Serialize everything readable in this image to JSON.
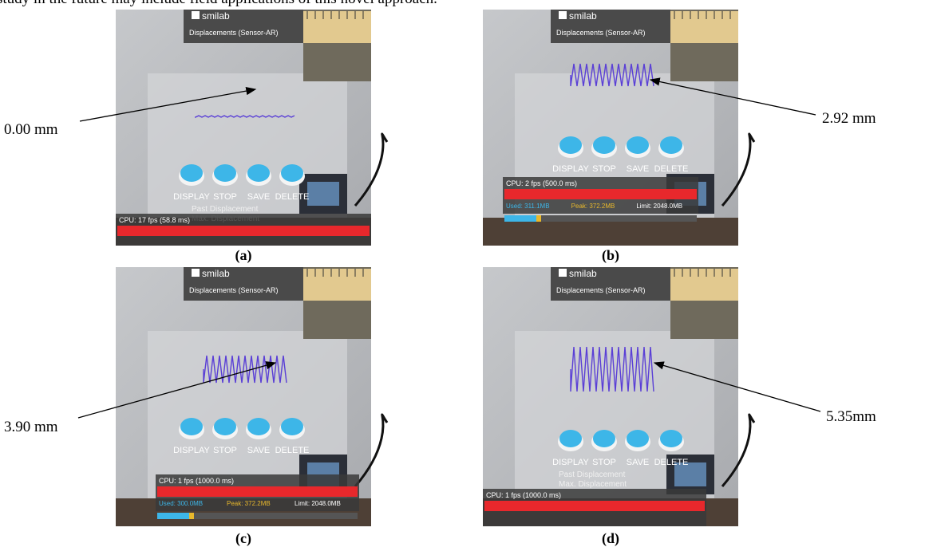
{
  "header_text": "study in the future may include field applications of this novel approach.",
  "panels": [
    {
      "label": "(a)",
      "annotation": "0.00 mm",
      "logo": "smilab",
      "app_title": "Displacements (Sensor-AR)",
      "buttons": [
        "DISPLAY",
        "STOP",
        "SAVE",
        "DELETE"
      ],
      "notes": [
        "Past Displacement",
        "Max. Displacement"
      ],
      "cpu": "CPU: 17 fps (58.8 ms)",
      "memory": []
    },
    {
      "label": "(b)",
      "annotation": "2.92 mm",
      "logo": "smilab",
      "app_title": "Displacements (Sensor-AR)",
      "buttons": [
        "DISPLAY",
        "STOP",
        "SAVE",
        "DELETE"
      ],
      "notes": [],
      "cpu": "CPU: 2 fps (500.0 ms)",
      "memory": [
        "Used: 311.1MB",
        "Peak: 372.2MB",
        "Limit: 2048.0MB"
      ]
    },
    {
      "label": "(c)",
      "annotation": "3.90 mm",
      "logo": "smilab",
      "app_title": "Displacements (Sensor-AR)",
      "buttons": [
        "DISPLAY",
        "STOP",
        "SAVE",
        "DELETE"
      ],
      "notes": [],
      "cpu": "CPU: 1 fps (1000.0 ms)",
      "memory": [
        "Used: 300.0MB",
        "Peak: 372.2MB",
        "Limit: 2048.0MB"
      ]
    },
    {
      "label": "(d)",
      "annotation": "5.35mm",
      "logo": "smilab",
      "app_title": "Displacements (Sensor-AR)",
      "buttons": [
        "DISPLAY",
        "STOP",
        "SAVE",
        "DELETE"
      ],
      "notes": [
        "Past Displacement",
        "Max. Displacement"
      ],
      "cpu": "CPU: 1 fps (1000.0 ms)",
      "memory": []
    }
  ]
}
